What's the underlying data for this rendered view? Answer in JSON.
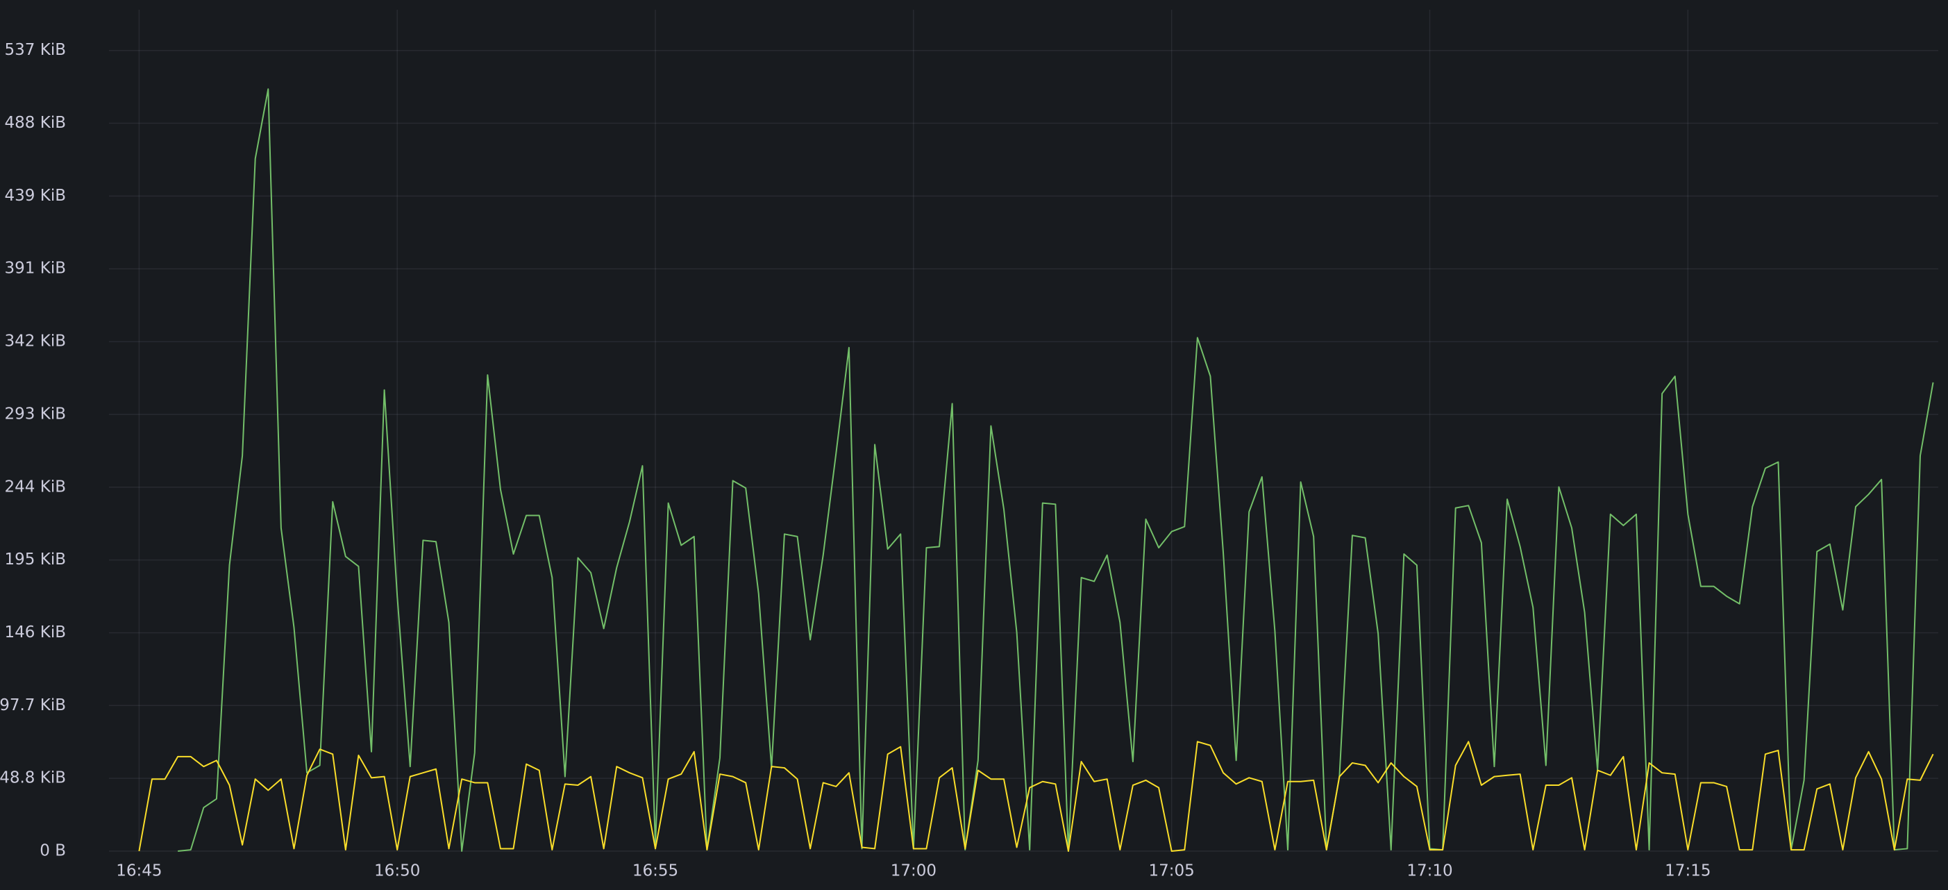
{
  "chart_data": {
    "type": "line",
    "grid": true,
    "xlim": [
      "16:44:25",
      "17:19:51"
    ],
    "xticks": [
      "16:45",
      "16:50",
      "16:55",
      "17:00",
      "17:05",
      "17:10",
      "17:15"
    ],
    "ylim": [
      0,
      578000
    ],
    "yticks": [
      {
        "value": 0,
        "label": "0 B"
      },
      {
        "value": 50000,
        "label": "48.8 KiB"
      },
      {
        "value": 100000,
        "label": "97.7 KiB"
      },
      {
        "value": 150000,
        "label": "146 KiB"
      },
      {
        "value": 200000,
        "label": "195 KiB"
      },
      {
        "value": 250000,
        "label": "244 KiB"
      },
      {
        "value": 300000,
        "label": "293 KiB"
      },
      {
        "value": 350000,
        "label": "342 KiB"
      },
      {
        "value": 400000,
        "label": "391 KiB"
      },
      {
        "value": 450000,
        "label": "439 KiB"
      },
      {
        "value": 500000,
        "label": "488 KiB"
      },
      {
        "value": 550000,
        "label": "537 KiB"
      }
    ],
    "x": [
      "16:45:00",
      "16:45:15",
      "16:45:30",
      "16:45:45",
      "16:46:00",
      "16:46:15",
      "16:46:30",
      "16:46:45",
      "16:47:00",
      "16:47:15",
      "16:47:30",
      "16:47:45",
      "16:48:00",
      "16:48:15",
      "16:48:30",
      "16:48:45",
      "16:49:00",
      "16:49:15",
      "16:49:30",
      "16:49:45",
      "16:50:00",
      "16:50:15",
      "16:50:30",
      "16:50:45",
      "16:51:00",
      "16:51:15",
      "16:51:30",
      "16:51:45",
      "16:52:00",
      "16:52:15",
      "16:52:30",
      "16:52:45",
      "16:53:00",
      "16:53:15",
      "16:53:30",
      "16:53:45",
      "16:54:00",
      "16:54:15",
      "16:54:30",
      "16:54:45",
      "16:55:00",
      "16:55:15",
      "16:55:30",
      "16:55:45",
      "16:56:00",
      "16:56:15",
      "16:56:30",
      "16:56:45",
      "16:57:00",
      "16:57:15",
      "16:57:30",
      "16:57:45",
      "16:58:00",
      "16:58:15",
      "16:58:30",
      "16:58:45",
      "16:59:00",
      "16:59:15",
      "16:59:30",
      "16:59:45",
      "17:00:00",
      "17:00:15",
      "17:00:30",
      "17:00:45",
      "17:01:00",
      "17:01:15",
      "17:01:30",
      "17:01:45",
      "17:02:00",
      "17:02:15",
      "17:02:30",
      "17:02:45",
      "17:03:00",
      "17:03:15",
      "17:03:30",
      "17:03:45",
      "17:04:00",
      "17:04:15",
      "17:04:30",
      "17:04:45",
      "17:05:00",
      "17:05:15",
      "17:05:30",
      "17:05:45",
      "17:06:00",
      "17:06:15",
      "17:06:30",
      "17:06:45",
      "17:07:00",
      "17:07:15",
      "17:07:30",
      "17:07:45",
      "17:08:00",
      "17:08:15",
      "17:08:30",
      "17:08:45",
      "17:09:00",
      "17:09:15",
      "17:09:30",
      "17:09:45",
      "17:10:00",
      "17:10:15",
      "17:10:30",
      "17:10:45",
      "17:11:00",
      "17:11:15",
      "17:11:30",
      "17:11:45",
      "17:12:00",
      "17:12:15",
      "17:12:30",
      "17:12:45",
      "17:13:00",
      "17:13:15",
      "17:13:30",
      "17:13:45",
      "17:14:00",
      "17:14:15",
      "17:14:30",
      "17:14:45",
      "17:15:00",
      "17:15:15",
      "17:15:30",
      "17:15:45",
      "17:16:00",
      "17:16:15",
      "17:16:30",
      "17:16:45",
      "17:17:00",
      "17:17:15",
      "17:17:30",
      "17:17:45",
      "17:18:00",
      "17:18:15",
      "17:18:30",
      "17:18:45",
      "17:19:00",
      "17:19:15",
      "17:19:30",
      "17:19:45"
    ],
    "series": [
      {
        "color": "#73bf69",
        "values": [
          null,
          null,
          null,
          0,
          900,
          29900,
          35900,
          196400,
          271600,
          475700,
          523500,
          222000,
          153700,
          53800,
          58900,
          240000,
          202400,
          195600,
          68300,
          316800,
          175100,
          58100,
          213500,
          212600,
          157100,
          0,
          67500,
          327100,
          248500,
          204100,
          230600,
          230600,
          187900,
          51200,
          201500,
          191300,
          152900,
          194700,
          226300,
          264700,
          4300,
          239100,
          210100,
          216100,
          900,
          64100,
          254500,
          249400,
          176800,
          57200,
          217800,
          216100,
          145200,
          203300,
          273300,
          345900,
          1700,
          279300,
          207500,
          217800,
          1700,
          208400,
          209200,
          307400,
          900,
          62300,
          292100,
          234900,
          150300,
          900,
          239100,
          238300,
          0,
          187900,
          185300,
          203300,
          157100,
          61500,
          228000,
          208400,
          219500,
          222900,
          352700,
          326200,
          205000,
          62300,
          233100,
          257100,
          151200,
          900,
          253600,
          216100,
          900,
          51200,
          216900,
          215200,
          149400,
          900,
          204100,
          196400,
          1700,
          900,
          235700,
          237400,
          211800,
          58100,
          241700,
          209200,
          167400,
          58900,
          250200,
          222000,
          164000,
          55500,
          231400,
          223700,
          231400,
          900,
          314300,
          326200,
          231400,
          181900,
          181900,
          175100,
          169900,
          236600,
          263000,
          267300,
          900,
          48700,
          205800,
          210900,
          165700,
          236600,
          245100,
          255300,
          900,
          1700,
          271600,
          322000
        ]
      },
      {
        "color": "#fade2a",
        "values": [
          0,
          49500,
          49500,
          64900,
          64900,
          58100,
          62300,
          45300,
          4300,
          49500,
          41800,
          49500,
          1700,
          52100,
          70000,
          66600,
          900,
          65800,
          50400,
          51200,
          900,
          51200,
          53800,
          56400,
          1700,
          49500,
          47000,
          47000,
          1700,
          1700,
          59800,
          55500,
          900,
          46100,
          45300,
          51200,
          1700,
          58100,
          53800,
          50400,
          1700,
          49500,
          52900,
          68300,
          900,
          52900,
          51200,
          47000,
          900,
          58100,
          57200,
          49500,
          1700,
          47000,
          44400,
          53800,
          2600,
          1700,
          66600,
          71700,
          1700,
          1700,
          50400,
          57200,
          1700,
          55500,
          49500,
          49500,
          2600,
          43600,
          47800,
          46100,
          0,
          61500,
          47800,
          49500,
          900,
          45300,
          48700,
          43600,
          0,
          900,
          75200,
          72600,
          53800,
          46100,
          50400,
          47800,
          900,
          47800,
          47800,
          48700,
          900,
          51200,
          60600,
          58900,
          47000,
          60600,
          51200,
          44400,
          900,
          900,
          58900,
          75200,
          45300,
          51200,
          52100,
          52900,
          900,
          45300,
          45300,
          50400,
          900,
          55500,
          52100,
          64900,
          900,
          60600,
          53800,
          52900,
          900,
          47000,
          47000,
          44400,
          900,
          900,
          66600,
          69200,
          900,
          900,
          42700,
          46100,
          900,
          50400,
          68300,
          49500,
          900,
          49500,
          48700,
          66600
        ]
      }
    ]
  }
}
